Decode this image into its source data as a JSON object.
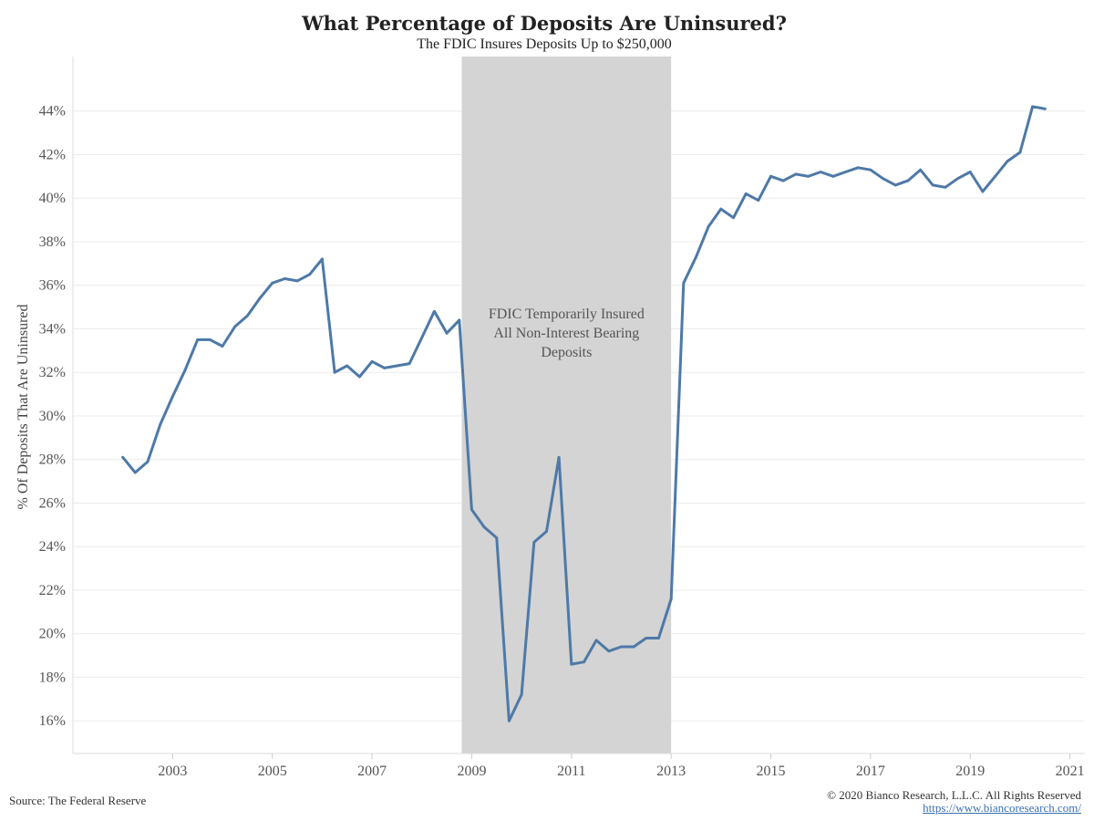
{
  "chart_data": {
    "type": "line",
    "title": "What Percentage of Deposits Are Uninsured?",
    "subtitle": "The FDIC Insures Deposits Up to $250,000",
    "ylabel": "% Of Deposits That Are Uninsured",
    "xlabel": "",
    "xlim": [
      2001.0,
      2021.3
    ],
    "ylim": [
      14.5,
      46.5
    ],
    "x_ticks": [
      2003,
      2005,
      2007,
      2009,
      2011,
      2013,
      2015,
      2017,
      2019,
      2021
    ],
    "y_ticks": [
      16,
      18,
      20,
      22,
      24,
      26,
      28,
      30,
      32,
      34,
      36,
      38,
      40,
      42,
      44
    ],
    "y_tick_labels": [
      "16%",
      "18%",
      "20%",
      "22%",
      "24%",
      "26%",
      "28%",
      "30%",
      "32%",
      "34%",
      "36%",
      "38%",
      "40%",
      "42%",
      "44%"
    ],
    "grid": "horizontal",
    "line_color": "#4e79a7",
    "shaded_region": {
      "x_start": 2008.8,
      "x_end": 2013.0,
      "color": "#d4d4d4"
    },
    "annotation": {
      "lines": [
        "FDIC Temporarily Insured",
        "All Non-Interest Bearing",
        "Deposits"
      ],
      "x": 2010.9,
      "y": 33.3
    },
    "series": [
      {
        "x": [
          2002.0,
          2002.25,
          2002.5,
          2002.75,
          2003.0,
          2003.25,
          2003.5,
          2003.75,
          2004.0,
          2004.25,
          2004.5,
          2004.75,
          2005.0,
          2005.25,
          2005.5,
          2005.75,
          2006.0,
          2006.25,
          2006.5,
          2006.75,
          2007.0,
          2007.25,
          2007.5,
          2007.75,
          2008.0,
          2008.25,
          2008.5,
          2008.75,
          2009.0,
          2009.25,
          2009.5,
          2009.75,
          2010.0,
          2010.25,
          2010.5,
          2010.75,
          2011.0,
          2011.25,
          2011.5,
          2011.75,
          2012.0,
          2012.25,
          2012.5,
          2012.75,
          2013.0,
          2013.25,
          2013.5,
          2013.75,
          2014.0,
          2014.25,
          2014.5,
          2014.75,
          2015.0,
          2015.25,
          2015.5,
          2015.75,
          2016.0,
          2016.25,
          2016.5,
          2016.75,
          2017.0,
          2017.25,
          2017.5,
          2017.75,
          2018.0,
          2018.25,
          2018.5,
          2018.75,
          2019.0,
          2019.25,
          2019.5,
          2019.75,
          2020.0,
          2020.25,
          2020.5
        ],
        "values": [
          28.1,
          27.4,
          27.9,
          29.6,
          30.9,
          32.1,
          33.5,
          33.5,
          33.2,
          34.1,
          34.6,
          35.4,
          36.1,
          36.3,
          36.2,
          36.5,
          37.2,
          32.0,
          32.3,
          31.8,
          32.5,
          32.2,
          32.3,
          32.4,
          33.6,
          34.8,
          33.8,
          34.4,
          25.7,
          24.9,
          24.4,
          16.0,
          17.2,
          24.2,
          24.7,
          28.1,
          18.6,
          18.7,
          19.7,
          19.2,
          19.4,
          19.4,
          19.8,
          19.8,
          21.6,
          36.1,
          37.3,
          38.7,
          39.5,
          39.1,
          40.2,
          39.9,
          41.0,
          40.8,
          41.1,
          41.0,
          41.2,
          41.0,
          41.2,
          41.4,
          41.3,
          40.9,
          40.6,
          40.8,
          41.3,
          40.6,
          40.5,
          40.9,
          41.2,
          40.3,
          41.0,
          41.7,
          42.1,
          44.2,
          44.1
        ]
      }
    ]
  },
  "footer": {
    "source": "Source: The Federal Reserve",
    "copyright": "© 2020 Bianco Research, L.L.C. All Rights Reserved",
    "url": "https://www.biancoresearch.com/"
  }
}
